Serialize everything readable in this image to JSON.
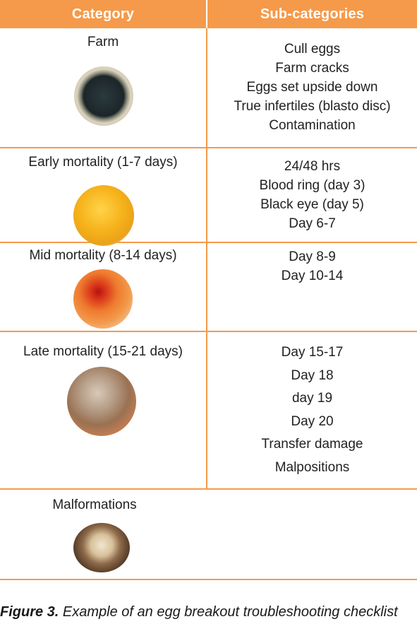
{
  "header": {
    "category_label": "Category",
    "subcategories_label": "Sub-categories"
  },
  "rows": [
    {
      "category": "Farm",
      "image": "farm-egg-photo",
      "subcategories": [
        "Cull eggs",
        "Farm cracks",
        "Eggs set upside down",
        "True infertiles (blasto disc)",
        "Contamination"
      ]
    },
    {
      "category": "Early mortality (1-7 days)",
      "image": "early-mortality-egg-photo",
      "subcategories": [
        "24/48 hrs",
        "Blood ring (day 3)",
        "Black eye (day 5)",
        "Day 6-7"
      ]
    },
    {
      "category": "Mid mortality (8-14 days)",
      "image": "mid-mortality-egg-photo",
      "subcategories": [
        "Day 8-9",
        "Day 10-14"
      ]
    },
    {
      "category": "Late mortality (15-21 days)",
      "image": "late-mortality-egg-photo",
      "subcategories": [
        "Day 15-17",
        "Day 18",
        "day 19",
        "Day 20",
        "Transfer damage",
        "Malpositions"
      ]
    },
    {
      "category": "Malformations",
      "image": "malformations-egg-photo",
      "subcategories": []
    }
  ],
  "caption": {
    "figure_label": "Figure 3.",
    "text": "Example of an egg breakout troubleshooting checklist"
  },
  "colors": {
    "accent": "#f59a4a",
    "header_text": "#ffffff"
  }
}
